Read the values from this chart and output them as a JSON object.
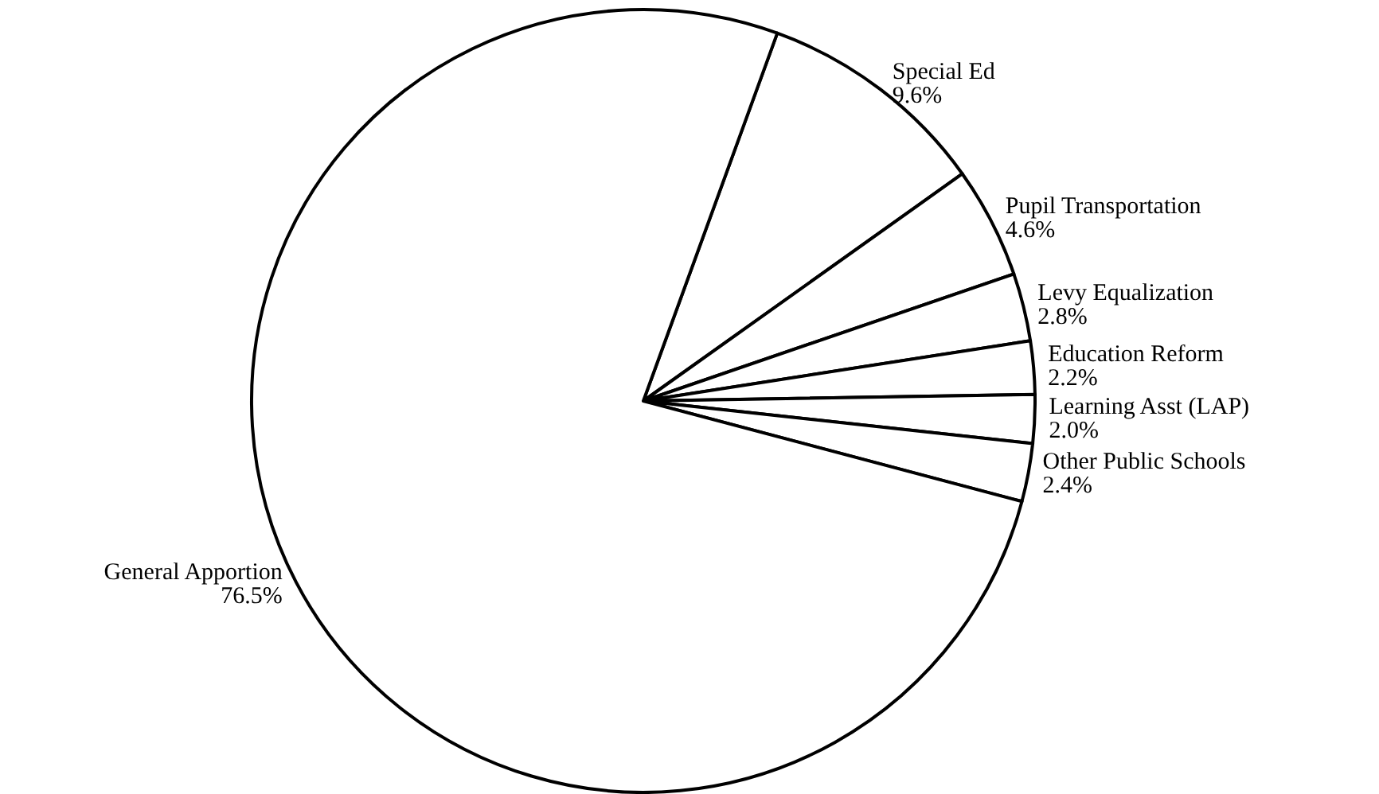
{
  "chart_data": {
    "type": "pie",
    "categories": [
      "Special Ed",
      "Pupil Transportation",
      "Levy Equalization",
      "Education Reform",
      "Learning Asst (LAP)",
      "Other Public Schools",
      "General Apportion"
    ],
    "values": [
      9.6,
      4.6,
      2.8,
      2.2,
      2.0,
      2.4,
      76.5
    ],
    "value_labels": [
      "9.6%",
      "4.6%",
      "2.8%",
      "2.2%",
      "2.0%",
      "2.4%",
      "76.5%"
    ],
    "colors": [
      "#ffffff",
      "#ffffff",
      "#ffffff",
      "#ffffff",
      "#ffffff",
      "#ffffff",
      "#ffffff"
    ],
    "legend": false
  }
}
